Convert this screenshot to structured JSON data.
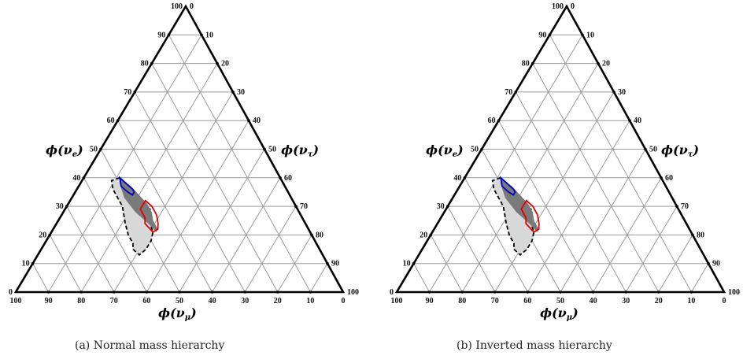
{
  "tick_values": [
    "0",
    "10",
    "20",
    "30",
    "40",
    "50",
    "60",
    "70",
    "80",
    "90",
    "100"
  ],
  "panels": [
    {
      "caption": "(a)  Normal mass hierarchy",
      "axes": {
        "left": {
          "symbol": "ϕ(ν",
          "sub": "e",
          "close": ")"
        },
        "right": {
          "symbol": "ϕ(ν",
          "sub": "τ",
          "close": ")"
        },
        "bottom": {
          "symbol": "ϕ(ν",
          "sub": "μ",
          "close": ")"
        }
      }
    },
    {
      "caption": "(b)  Inverted mass hierarchy",
      "axes": {
        "left": {
          "symbol": "ϕ(ν",
          "sub": "e",
          "close": ")"
        },
        "right": {
          "symbol": "ϕ(ν",
          "sub": "τ",
          "close": ")"
        },
        "bottom": {
          "symbol": "ϕ(ν",
          "sub": "μ",
          "close": ")"
        }
      }
    }
  ],
  "regions": {
    "colors": {
      "outer_fill": "#d8d8d8",
      "outer_stroke": "#000000",
      "inner_fill": "#7a7a7a",
      "red": "#e00000",
      "blue": "#0000cc",
      "grid": "#9a9a9a",
      "frame": "#000000"
    },
    "outer_contour": [
      [
        40,
        49
      ],
      [
        39,
        52
      ],
      [
        36,
        53
      ],
      [
        30,
        53
      ],
      [
        24,
        55
      ],
      [
        20,
        56
      ],
      [
        17,
        56
      ],
      [
        15,
        57
      ],
      [
        13,
        56
      ],
      [
        15,
        53
      ],
      [
        18,
        50
      ],
      [
        21,
        48
      ],
      [
        26,
        47
      ],
      [
        29,
        45
      ],
      [
        33,
        46
      ],
      [
        36,
        47
      ]
    ],
    "inner_region": [
      [
        40,
        49
      ],
      [
        38,
        50
      ],
      [
        33,
        51
      ],
      [
        28,
        50
      ],
      [
        24,
        48
      ],
      [
        21,
        47
      ],
      [
        22,
        46
      ],
      [
        25,
        46
      ],
      [
        28,
        45
      ],
      [
        31,
        45
      ],
      [
        34,
        46
      ],
      [
        37,
        47
      ]
    ],
    "red_contour": [
      [
        32,
        45
      ],
      [
        29,
        48
      ],
      [
        26,
        48
      ],
      [
        24,
        49
      ],
      [
        21,
        48
      ],
      [
        22,
        46
      ],
      [
        24,
        45
      ],
      [
        27,
        44
      ],
      [
        30,
        44
      ]
    ],
    "blue_contour": [
      [
        40,
        49
      ],
      [
        37,
        50
      ],
      [
        35,
        49
      ],
      [
        34,
        48
      ],
      [
        35,
        47
      ],
      [
        36,
        47
      ],
      [
        38,
        48
      ]
    ]
  }
}
